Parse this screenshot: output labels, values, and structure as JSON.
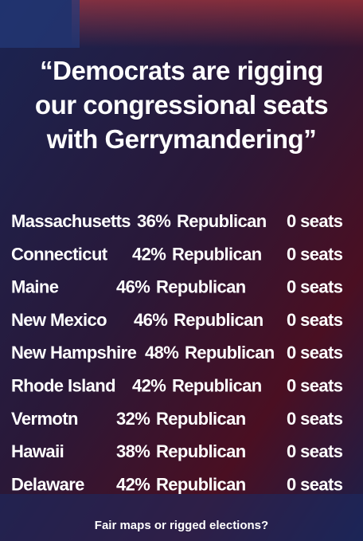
{
  "title_lines": [
    "“Democrats are rigging",
    "our congressional seats",
    "with Gerrymandering”"
  ],
  "table": {
    "rows": [
      {
        "state": "Massachusetts",
        "pct": "36%",
        "party": "Republican",
        "seats": "0 seats",
        "highlight": true
      },
      {
        "state": "Connecticut",
        "pct": "42%",
        "party": "Republican",
        "seats": "0 seats",
        "highlight": true
      },
      {
        "state": "Maine",
        "pct": "46%",
        "party": "Republican",
        "seats": "0 seats",
        "highlight": false
      },
      {
        "state": "New Mexico",
        "pct": "46%",
        "party": "Republican",
        "seats": "0 seats",
        "highlight": true
      },
      {
        "state": "New Hampshire",
        "pct": "48%",
        "party": "Republican",
        "seats": "0 seats",
        "highlight": true
      },
      {
        "state": "Rhode Island",
        "pct": "42%",
        "party": "Republican",
        "seats": "0 seats",
        "highlight": true
      },
      {
        "state": "Vermotn",
        "pct": "32%",
        "party": "Republican",
        "seats": "0 seats",
        "highlight": false
      },
      {
        "state": "Hawaii",
        "pct": "38%",
        "party": "Republican",
        "seats": "0 seats",
        "highlight": false
      },
      {
        "state": "Delaware",
        "pct": "42%",
        "party": "Republican",
        "seats": "0 seats",
        "highlight": false
      }
    ]
  },
  "footer": "Fair maps or rigged elections?"
}
